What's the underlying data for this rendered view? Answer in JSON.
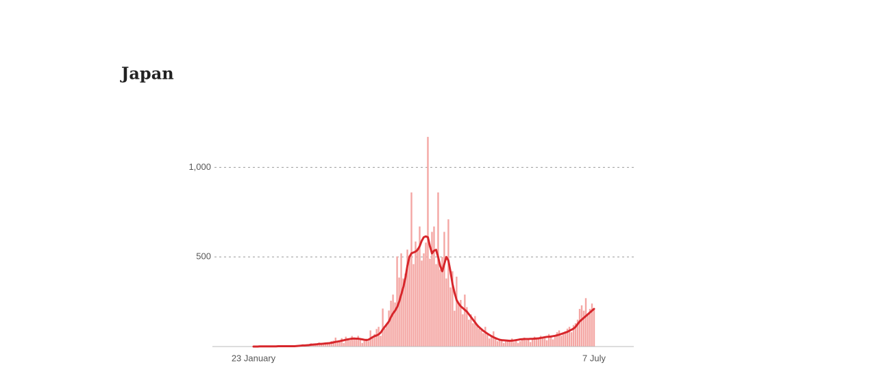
{
  "chart_data": {
    "type": "bar",
    "title": "Japan",
    "categories": [
      "23 January",
      null,
      null,
      null,
      null,
      null,
      null,
      null,
      null,
      null,
      null,
      null,
      null,
      null,
      null,
      null,
      null,
      null,
      null,
      null,
      null,
      null,
      null,
      null,
      null,
      null,
      null,
      null,
      null,
      null,
      null,
      null,
      null,
      null,
      null,
      null,
      null,
      null,
      null,
      null,
      null,
      null,
      null,
      null,
      null,
      null,
      null,
      null,
      null,
      null,
      null,
      null,
      null,
      null,
      null,
      null,
      null,
      null,
      null,
      null,
      null,
      null,
      null,
      null,
      null,
      null,
      null,
      null,
      null,
      null,
      null,
      null,
      null,
      null,
      null,
      null,
      null,
      null,
      null,
      null,
      null,
      null,
      null,
      null,
      null,
      null,
      null,
      null,
      null,
      null,
      null,
      null,
      null,
      null,
      null,
      null,
      null,
      null,
      null,
      null,
      null,
      null,
      null,
      null,
      null,
      null,
      null,
      null,
      null,
      null,
      null,
      null,
      null,
      null,
      null,
      null,
      null,
      null,
      null,
      null,
      null,
      null,
      null,
      null,
      null,
      null,
      null,
      null,
      null,
      null,
      null,
      null,
      null,
      null,
      null,
      null,
      null,
      null,
      null,
      null,
      null,
      null,
      null,
      null,
      null,
      null,
      null,
      null,
      null,
      null,
      null,
      null,
      null,
      null,
      null,
      null,
      null,
      null,
      null,
      null,
      null,
      null,
      null,
      null,
      null,
      null,
      "7 July"
    ],
    "series": [
      {
        "type": "bar",
        "color": "#f4a6a3",
        "values": [
          1,
          0,
          2,
          0,
          0,
          1,
          3,
          1,
          4,
          0,
          2,
          2,
          3,
          1,
          5,
          0,
          1,
          1,
          0,
          4,
          3,
          5,
          6,
          9,
          12,
          3,
          10,
          12,
          18,
          14,
          13,
          15,
          22,
          10,
          20,
          16,
          22,
          17,
          30,
          33,
          50,
          26,
          33,
          47,
          20,
          55,
          43,
          34,
          59,
          43,
          39,
          60,
          36,
          20,
          33,
          44,
          30,
          90,
          55,
          70,
          98,
          110,
          60,
          212,
          100,
          124,
          201,
          256,
          290,
          246,
          503,
          385,
          520,
          380,
          407,
          541,
          509,
          860,
          460,
          586,
          550,
          670,
          480,
          520,
          580,
          1170,
          490,
          640,
          670,
          460,
          860,
          430,
          500,
          640,
          380,
          710,
          330,
          420,
          200,
          390,
          240,
          260,
          180,
          290,
          220,
          150,
          180,
          130,
          170,
          120,
          100,
          90,
          75,
          110,
          65,
          45,
          60,
          85,
          50,
          30,
          35,
          40,
          20,
          28,
          36,
          30,
          45,
          25,
          40,
          20,
          30,
          45,
          50,
          35,
          42,
          25,
          38,
          55,
          40,
          44,
          60,
          50,
          45,
          35,
          70,
          55,
          40,
          65,
          80,
          90,
          60,
          75,
          85,
          100,
          110,
          80,
          120,
          130,
          150,
          210,
          230,
          200,
          270,
          180,
          210,
          240,
          210
        ]
      },
      {
        "type": "line",
        "color": "#d7262b",
        "values": [
          0,
          0,
          0,
          1,
          1,
          1,
          1,
          1,
          1,
          1,
          1,
          1,
          2,
          2,
          2,
          2,
          2,
          2,
          2,
          2,
          2,
          3,
          4,
          5,
          6,
          6,
          7,
          8,
          10,
          11,
          12,
          13,
          15,
          15,
          16,
          17,
          18,
          19,
          21,
          23,
          26,
          28,
          30,
          33,
          35,
          38,
          40,
          42,
          44,
          45,
          44,
          44,
          42,
          40,
          38,
          36,
          38,
          45,
          52,
          58,
          62,
          68,
          78,
          95,
          110,
          125,
          140,
          165,
          185,
          200,
          220,
          250,
          290,
          330,
          380,
          450,
          500,
          520,
          525,
          530,
          540,
          560,
          590,
          610,
          615,
          610,
          560,
          520,
          535,
          540,
          500,
          450,
          420,
          460,
          500,
          480,
          420,
          350,
          300,
          260,
          240,
          225,
          215,
          205,
          195,
          180,
          165,
          150,
          135,
          120,
          108,
          98,
          88,
          80,
          72,
          65,
          58,
          52,
          47,
          42,
          38,
          36,
          35,
          34,
          33,
          32,
          33,
          34,
          36,
          38,
          40,
          41,
          42,
          42,
          42,
          43,
          43,
          44,
          45,
          46,
          48,
          50,
          52,
          54,
          55,
          56,
          58,
          60,
          63,
          66,
          70,
          74,
          78,
          82,
          88,
          94,
          100,
          110,
          125,
          140,
          150,
          160,
          170,
          180,
          190,
          200,
          210
        ]
      }
    ],
    "ylim": [
      0,
      1200
    ],
    "yticks": [
      500,
      {
        "value": 1000,
        "label": "1,000"
      }
    ],
    "grid": true
  }
}
